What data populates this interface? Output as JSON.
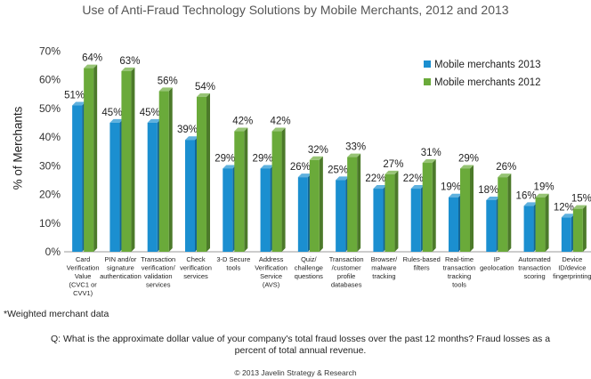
{
  "chart_data": {
    "type": "bar",
    "title": "Use of Anti-Fraud Technology Solutions by Mobile Merchants, 2012 and 2013",
    "ylabel": "% of Merchants",
    "xlabel": "",
    "ylim": [
      0,
      70
    ],
    "yticks": [
      "0%",
      "10%",
      "20%",
      "30%",
      "40%",
      "50%",
      "60%",
      "70%"
    ],
    "grid": false,
    "legend_position": "top-right",
    "categories": [
      [
        "Card",
        "Verification",
        "Value",
        "(CVC1 or",
        "CVV1)"
      ],
      [
        "PIN and/or",
        "signature",
        "authentication"
      ],
      [
        "Transaction",
        "verification/",
        "validation",
        "services"
      ],
      [
        "Check",
        "verification",
        "services"
      ],
      [
        "3-D Secure",
        "tools"
      ],
      [
        "Address",
        "Verification",
        "Service",
        "(AVS)"
      ],
      [
        "Quiz/",
        "challenge",
        "questions"
      ],
      [
        "Transaction",
        "/customer",
        "profile",
        "databases"
      ],
      [
        "Browser/",
        "malware",
        "tracking"
      ],
      [
        "Rules-based",
        "filters"
      ],
      [
        "Real-time",
        "transaction",
        "tracking",
        "tools"
      ],
      [
        "IP",
        "geolocation"
      ],
      [
        "Automated",
        "transaction",
        "scoring"
      ],
      [
        "Device",
        "ID/device",
        "fingerprinting"
      ]
    ],
    "series": [
      {
        "name": "Mobile merchants 2013",
        "color": "#1b8fd0",
        "values": [
          51,
          45,
          45,
          39,
          29,
          29,
          26,
          25,
          22,
          22,
          19,
          18,
          16,
          12
        ],
        "labels": [
          "51%",
          "45%",
          "45%",
          "39%",
          "29%",
          "29%",
          "26%",
          "25%",
          "22%",
          "22%",
          "19%",
          "18%",
          "16%",
          "12%"
        ]
      },
      {
        "name": "Mobile merchants 2012",
        "color": "#6aaa3a",
        "values": [
          64,
          63,
          56,
          54,
          42,
          42,
          32,
          33,
          27,
          31,
          29,
          26,
          19,
          15
        ],
        "labels": [
          "64%",
          "63%",
          "56%",
          "54%",
          "42%",
          "42%",
          "32%",
          "33%",
          "27%",
          "31%",
          "29%",
          "26%",
          "19%",
          "15%"
        ]
      }
    ]
  },
  "footnote": "*Weighted merchant data",
  "question": "Q: What is the approximate dollar value of your company's total fraud losses over the past 12 months? Fraud losses as a percent of total annual revenue.",
  "copyright": "© 2013 Javelin Strategy & Research"
}
